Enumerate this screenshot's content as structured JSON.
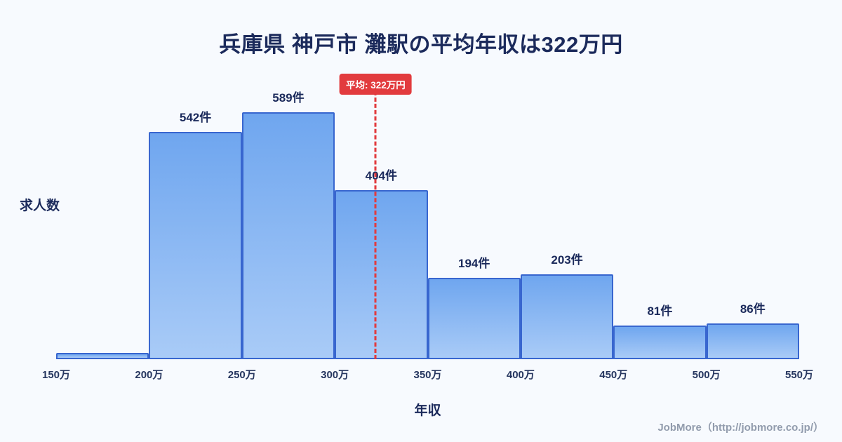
{
  "title": "兵庫県 神戸市 灘駅の平均年収は322万円",
  "footer": {
    "text": "JobMore（http://jobmore.co.jp/）"
  },
  "chart_data": {
    "type": "bar",
    "subtype": "histogram",
    "title": "兵庫県 神戸市 灘駅の平均年収は322万円",
    "xlabel": "年収",
    "ylabel": "求人数",
    "x_range": [
      150,
      550
    ],
    "bin_edges": [
      150,
      200,
      250,
      300,
      350,
      400,
      450,
      500,
      550
    ],
    "tick_labels": [
      "150万",
      "200万",
      "250万",
      "300万",
      "350万",
      "400万",
      "450万",
      "500万",
      "550万"
    ],
    "values": [
      15,
      542,
      589,
      404,
      194,
      203,
      81,
      86
    ],
    "bar_labels": [
      "",
      "542件",
      "589件",
      "404件",
      "194件",
      "203件",
      "81件",
      "86件"
    ],
    "mean": {
      "value": 322,
      "label": "平均: 322万円"
    },
    "ylim": [
      0,
      589
    ],
    "grid": false,
    "legend": false,
    "colors": {
      "bar_fill_top": "#6FA6EF",
      "bar_fill_bottom": "#A9CBF7",
      "bar_border": "#3866CF",
      "mean_line": "#E23B3E",
      "badge_bg": "#E23B3E",
      "badge_text": "#FFFFFF",
      "title_text": "#1B2A5B",
      "background": "#F7FAFE"
    }
  }
}
